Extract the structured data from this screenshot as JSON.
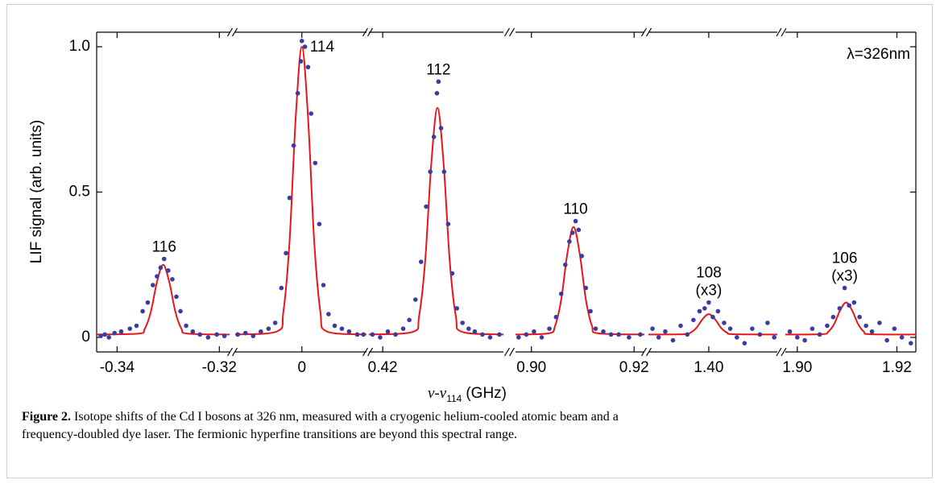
{
  "chart_data": {
    "type": "scatter",
    "y_label": "LIF signal (arb. units)",
    "x_label": [
      "ν-ν",
      "114",
      "(GHz)"
    ],
    "annotation": "λ=326nm",
    "ylim": [
      -0.05,
      1.05
    ],
    "yticks": [
      0,
      0.5,
      {
        "value": 1,
        "label": "1.0"
      }
    ],
    "panels": [
      {
        "label": [
          "116"
        ],
        "xlim": [
          -0.344,
          -0.318
        ],
        "xticks": [
          -0.34,
          -0.32
        ],
        "points": {
          "color": "#3b3d9e",
          "x": [
            -0.3432,
            -0.3424,
            -0.3416,
            -0.3405,
            -0.3392,
            -0.3375,
            -0.3362,
            -0.335,
            -0.334,
            -0.333,
            -0.3322,
            -0.3315,
            -0.3308,
            -0.33,
            -0.3292,
            -0.3284,
            -0.3276,
            -0.3265,
            -0.3252,
            -0.3238,
            -0.3222,
            -0.3205,
            -0.319
          ],
          "values": [
            0.005,
            0.01,
            0.0,
            0.015,
            0.02,
            0.03,
            0.04,
            0.09,
            0.12,
            0.18,
            0.21,
            0.24,
            0.27,
            0.23,
            0.2,
            0.14,
            0.09,
            0.04,
            0.02,
            0.01,
            0.0,
            0.01,
            0.005
          ]
        },
        "fit": {
          "color": "#e8161b",
          "x": [
            -0.344,
            -0.3358,
            -0.3346,
            -0.3334,
            -0.3322,
            -0.331,
            -0.3298,
            -0.3286,
            -0.3274,
            -0.3262,
            -0.318
          ],
          "values": [
            0.01,
            0.013,
            0.029,
            0.088,
            0.191,
            0.25,
            0.191,
            0.088,
            0.029,
            0.013,
            0.01
          ]
        }
      },
      {
        "label": [
          "114"
        ],
        "xlim": [
          -0.013,
          0.0126
        ],
        "xticks": [
          0
        ],
        "points": {
          "color": "#3b3d9e",
          "x": [
            -0.0125,
            -0.011,
            -0.0095,
            -0.008,
            -0.0065,
            -0.0052,
            -0.004,
            -0.0031,
            -0.0024,
            -0.0016,
            -0.0008,
            -0.0002,
            0.0,
            0.0006,
            0.0012,
            0.0018,
            0.0026,
            0.0034,
            0.0042,
            0.0052,
            0.0064,
            0.0078,
            0.0092,
            0.0108,
            0.012
          ],
          "values": [
            0.01,
            0.015,
            0.005,
            0.02,
            0.03,
            0.05,
            0.17,
            0.29,
            0.48,
            0.66,
            0.84,
            0.95,
            1.02,
            1.0,
            0.93,
            0.77,
            0.6,
            0.39,
            0.18,
            0.08,
            0.04,
            0.03,
            0.02,
            0.01,
            0.01
          ]
        },
        "fit": {
          "color": "#e8161b",
          "x": [
            -0.013,
            -0.0048,
            -0.0036,
            -0.0024,
            -0.0012,
            0,
            0.0012,
            0.0024,
            0.0036,
            0.0048,
            0.0126
          ],
          "values": [
            0.01,
            0.021,
            0.089,
            0.331,
            0.757,
            1.0,
            0.757,
            0.331,
            0.089,
            0.021,
            0.01
          ]
        }
      },
      {
        "label": [
          "112"
        ],
        "xlim": [
          0.4173,
          0.4436
        ],
        "xticks": [
          0.42
        ],
        "points": {
          "color": "#3b3d9e",
          "x": [
            0.418,
            0.4195,
            0.421,
            0.4225,
            0.424,
            0.4252,
            0.4264,
            0.4275,
            0.4285,
            0.4293,
            0.43,
            0.4306,
            0.4309,
            0.4314,
            0.432,
            0.4328,
            0.4336,
            0.4345,
            0.4356,
            0.4368,
            0.438,
            0.4395,
            0.441,
            0.4428
          ],
          "values": [
            0.01,
            0.0,
            0.02,
            0.01,
            0.03,
            0.06,
            0.13,
            0.26,
            0.45,
            0.57,
            0.69,
            0.84,
            0.88,
            0.72,
            0.57,
            0.39,
            0.22,
            0.1,
            0.05,
            0.03,
            0.02,
            0.01,
            0.0,
            0.01
          ]
        },
        "fit": {
          "color": "#e8161b",
          "x": [
            0.4173,
            0.4259,
            0.4271,
            0.4283,
            0.4295,
            0.4307,
            0.4319,
            0.4331,
            0.4343,
            0.4355,
            0.4436
          ],
          "values": [
            0.01,
            0.019,
            0.072,
            0.263,
            0.599,
            0.79,
            0.599,
            0.263,
            0.072,
            0.019,
            0.01
          ]
        }
      },
      {
        "label": [
          "110"
        ],
        "xlim": [
          0.8969,
          0.922
        ],
        "xticks": [
          {
            "value": 0.9,
            "label": "0.90"
          },
          0.92
        ],
        "points": {
          "color": "#3b3d9e",
          "x": [
            0.8975,
            0.899,
            0.9005,
            0.902,
            0.9035,
            0.9048,
            0.9058,
            0.9066,
            0.9074,
            0.908,
            0.9086,
            0.9092,
            0.9098,
            0.9106,
            0.9115,
            0.9125,
            0.914,
            0.9155,
            0.917,
            0.919,
            0.9212
          ],
          "values": [
            0.0,
            0.01,
            0.02,
            0.0,
            0.03,
            0.07,
            0.15,
            0.25,
            0.33,
            0.36,
            0.4,
            0.37,
            0.28,
            0.17,
            0.09,
            0.03,
            0.02,
            0.01,
            0.01,
            0.0,
            0.01
          ]
        },
        "fit": {
          "color": "#e8161b",
          "x": [
            0.8969,
            0.9034,
            0.9046,
            0.9058,
            0.907,
            0.9082,
            0.9094,
            0.9106,
            0.9118,
            0.913,
            0.922
          ],
          "values": [
            0.01,
            0.014,
            0.039,
            0.13,
            0.289,
            0.38,
            0.289,
            0.13,
            0.039,
            0.014,
            0.01
          ]
        }
      },
      {
        "label": [
          "108",
          "(x3)"
        ],
        "xlim": [
          1.3882,
          1.4134
        ],
        "xticks": [
          {
            "value": 1.4,
            "label": "1.40"
          }
        ],
        "points": {
          "color": "#3b3d9e",
          "x": [
            1.389,
            1.3902,
            1.3915,
            1.393,
            1.3945,
            1.3958,
            1.397,
            1.3982,
            1.3992,
            1.4,
            1.4008,
            1.4018,
            1.403,
            1.4042,
            1.4055,
            1.407,
            1.4085,
            1.41,
            1.4115,
            1.4128
          ],
          "values": [
            0.03,
            0.0,
            0.02,
            -0.01,
            0.04,
            0.01,
            0.06,
            0.09,
            0.1,
            0.12,
            0.07,
            0.09,
            0.05,
            0.03,
            0.0,
            -0.02,
            0.03,
            0.01,
            0.05,
            0.0
          ]
        },
        "fit": {
          "color": "#e8161b",
          "x": [
            1.3882,
            1.3952,
            1.3964,
            1.3976,
            1.3988,
            1.4,
            1.4012,
            1.4024,
            1.4036,
            1.4048,
            1.4134
          ],
          "values": [
            0.01,
            0.011,
            0.016,
            0.033,
            0.063,
            0.08,
            0.063,
            0.033,
            0.016,
            0.011,
            0.01
          ]
        }
      },
      {
        "label": [
          "106",
          "(x3)"
        ],
        "xlim": [
          1.8976,
          1.9238
        ],
        "xticks": [
          {
            "value": 1.9,
            "label": "1.90"
          },
          1.92
        ],
        "points": {
          "color": "#3b3d9e",
          "x": [
            1.8985,
            1.9,
            1.9015,
            1.903,
            1.9045,
            1.906,
            1.9072,
            1.9085,
            1.9095,
            1.9104,
            1.9114,
            1.9125,
            1.9138,
            1.915,
            1.9165,
            1.918,
            1.9195,
            1.921,
            1.9228
          ],
          "values": [
            0.02,
            0.0,
            -0.01,
            0.03,
            0.01,
            0.04,
            0.07,
            0.1,
            0.17,
            0.11,
            0.12,
            0.07,
            0.04,
            0.02,
            0.05,
            -0.01,
            0.03,
            0.0,
            -0.02
          ]
        },
        "fit": {
          "color": "#e8161b",
          "x": [
            1.8976,
            1.905,
            1.9062,
            1.9074,
            1.9086,
            1.9098,
            1.911,
            1.9122,
            1.9134,
            1.9146,
            1.9238
          ],
          "values": [
            0.01,
            0.011,
            0.019,
            0.046,
            0.093,
            0.12,
            0.093,
            0.046,
            0.019,
            0.011,
            0.01
          ]
        }
      }
    ]
  },
  "caption": {
    "label": "Figure 2.",
    "lines": [
      "Isotope shifts of the Cd I bosons at 326 nm, measured with a cryogenic helium-cooled atomic beam and a",
      "frequency-doubled dye laser. The fermionic hyperfine transitions are beyond this spectral range."
    ]
  }
}
